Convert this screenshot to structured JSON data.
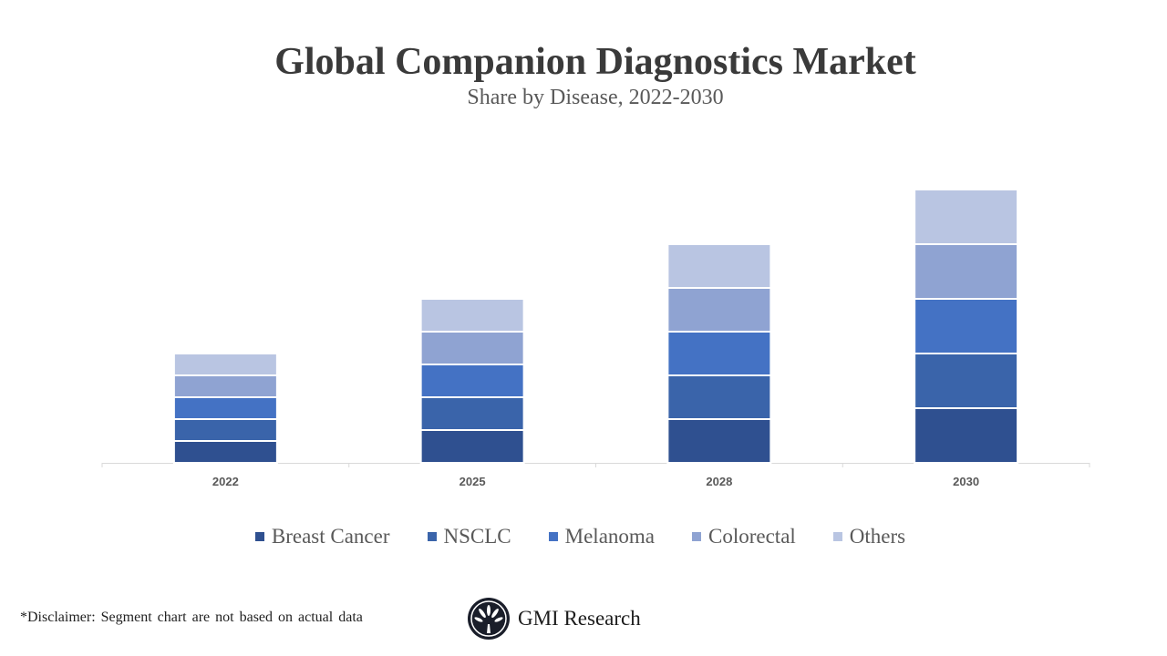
{
  "chart_data": {
    "type": "bar",
    "stacked": true,
    "title": "Global Companion Diagnostics Market",
    "subtitle": "Share by Disease, 2022-2030",
    "categories": [
      "2022",
      "2025",
      "2028",
      "2030"
    ],
    "series": [
      {
        "name": "Breast Cancer",
        "values": [
          2,
          3,
          4,
          5
        ],
        "color": "#2f5090"
      },
      {
        "name": "NSCLC",
        "values": [
          2,
          3,
          4,
          5
        ],
        "color": "#3a64aa"
      },
      {
        "name": "Melanoma",
        "values": [
          2,
          3,
          4,
          5
        ],
        "color": "#4472c4"
      },
      {
        "name": "Colorectal",
        "values": [
          2,
          3,
          4,
          5
        ],
        "color": "#8fa3d2"
      },
      {
        "name": "Others",
        "values": [
          2,
          3,
          4,
          5
        ],
        "color": "#b9c5e2"
      }
    ],
    "ylim": [
      0,
      28
    ],
    "y_axis_visible": false,
    "grid": false,
    "legend_position": "bottom"
  },
  "disclaimer": "*Disclaimer:   Segment chart are not based on actual data",
  "brand": "GMI Research"
}
